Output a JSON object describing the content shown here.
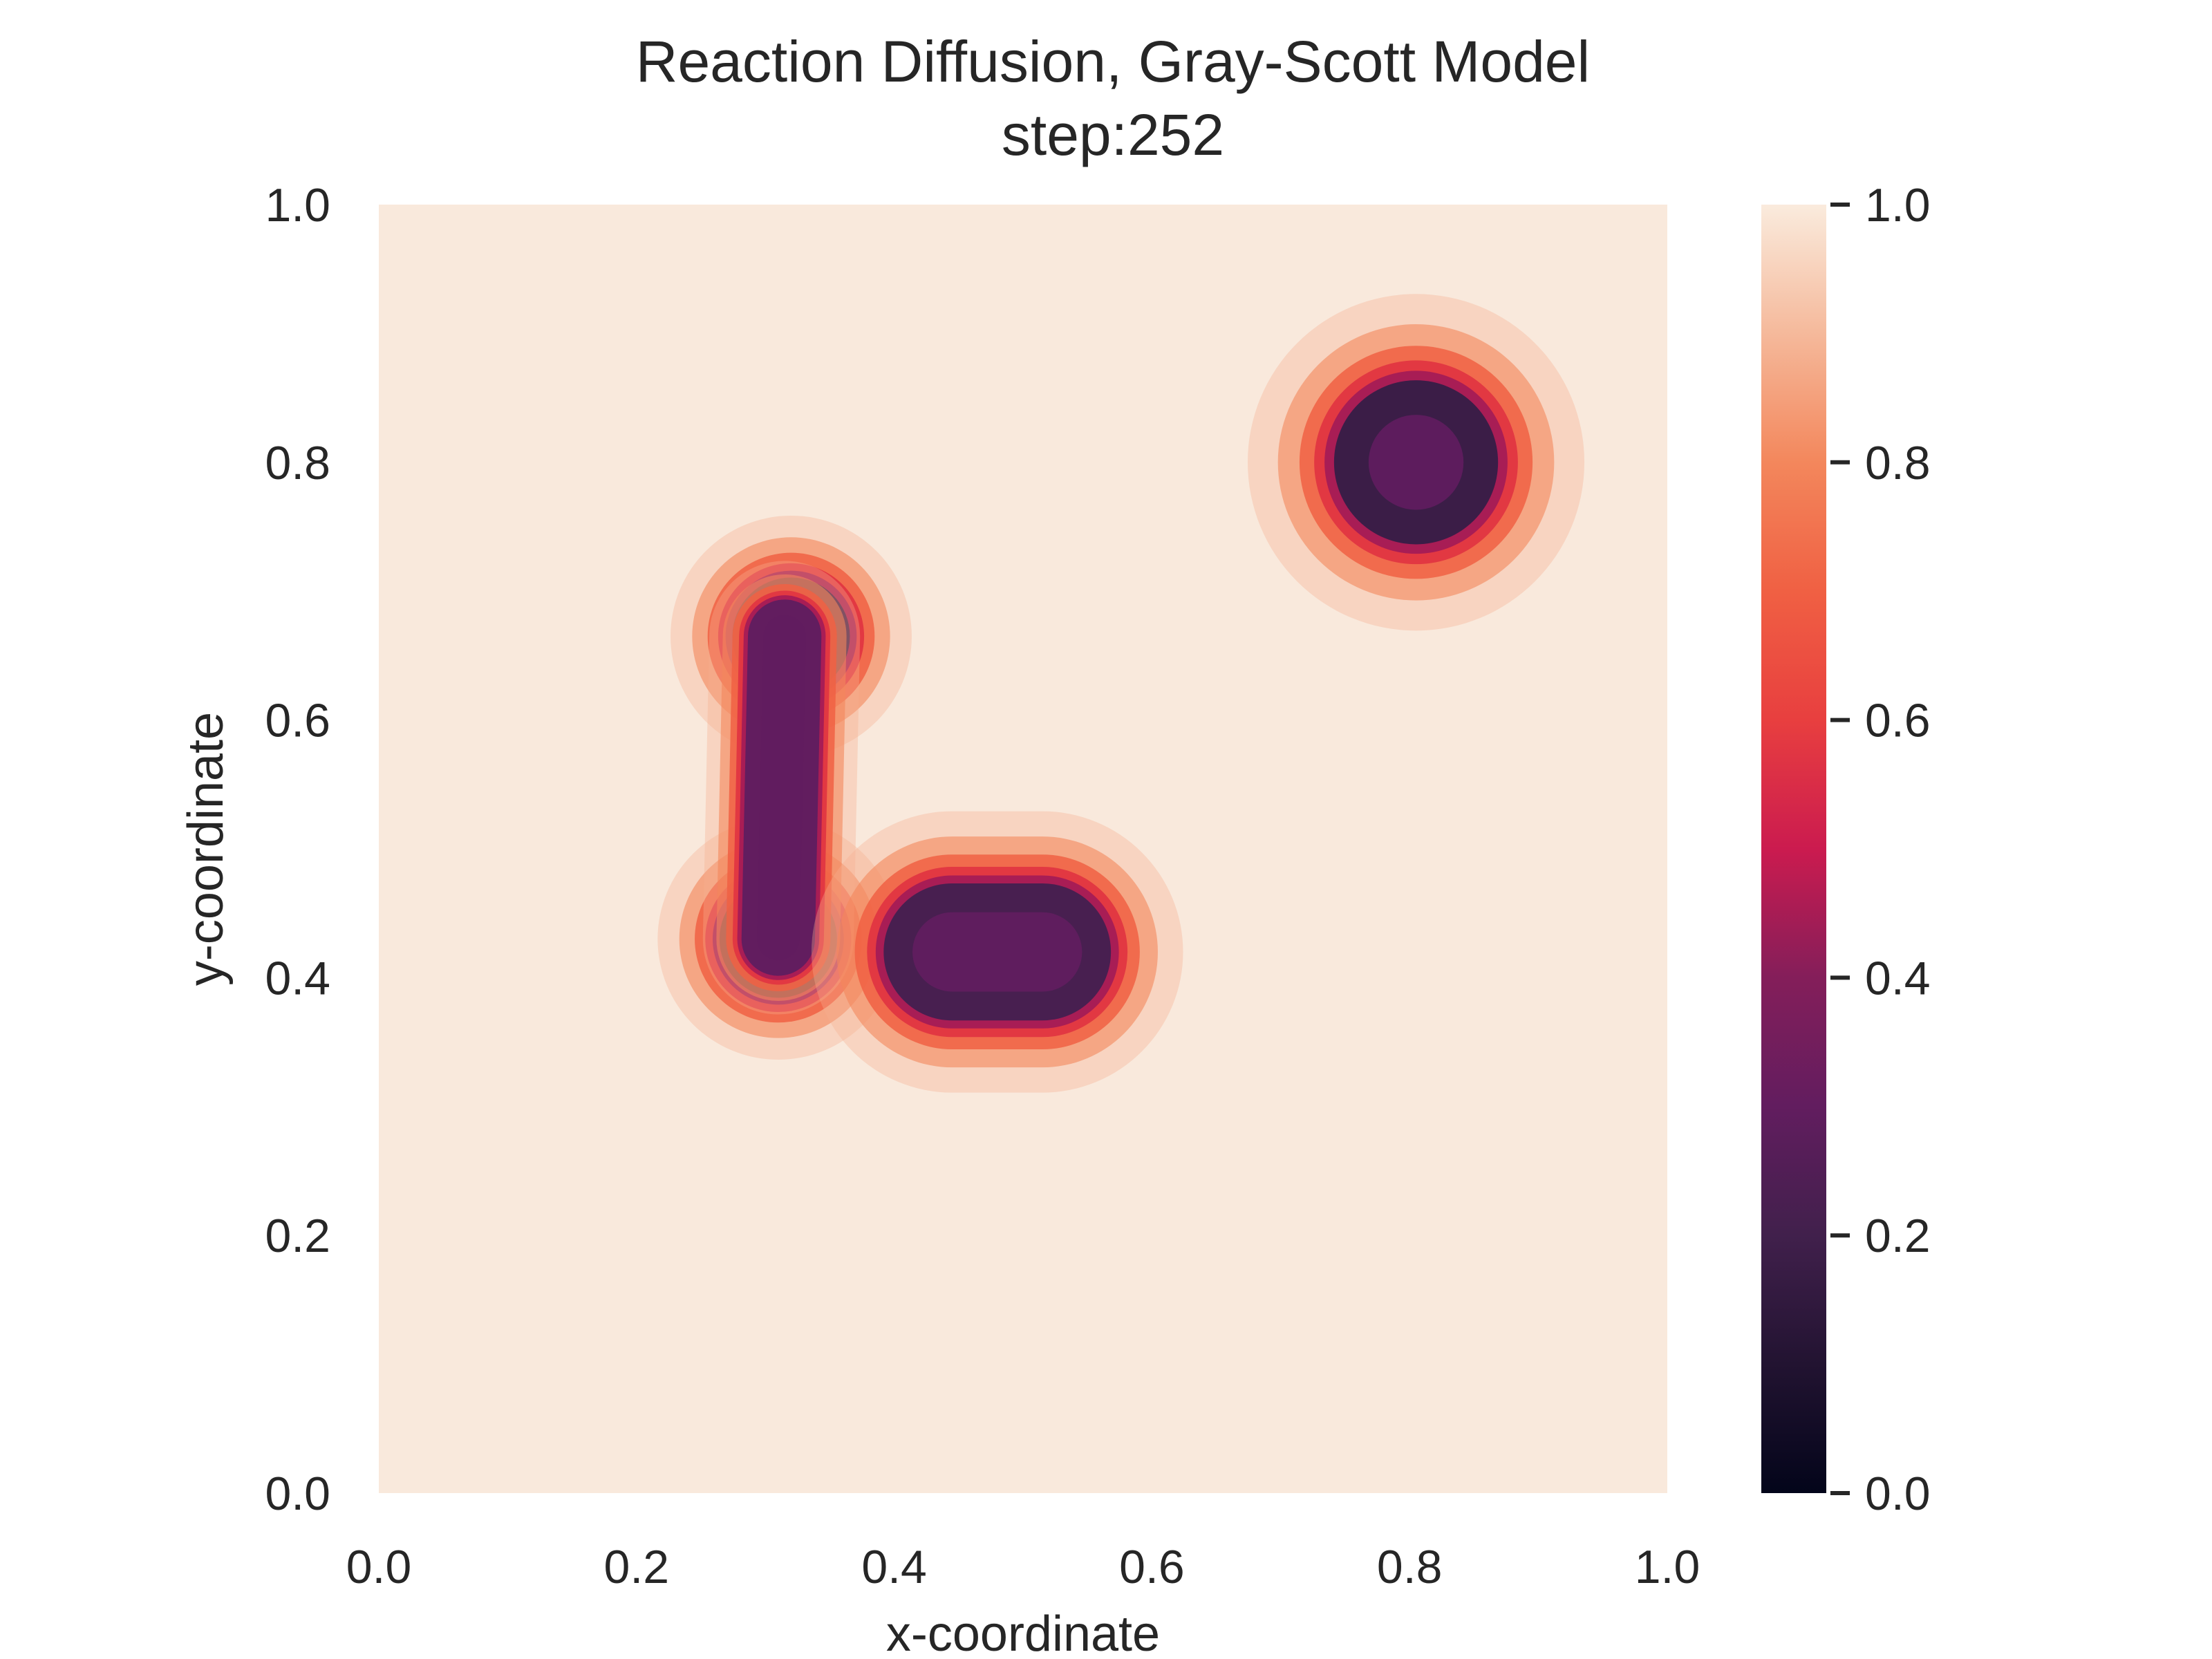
{
  "chart_data": {
    "type": "heatmap",
    "title": "Reaction Diffusion, Gray-Scott Model",
    "subtitle": "step:252",
    "xlabel": "x-coordinate",
    "ylabel": "y-coordinate",
    "xlim": [
      0.0,
      1.0
    ],
    "ylim": [
      0.0,
      1.0
    ],
    "x_ticks": [
      "0.0",
      "0.2",
      "0.4",
      "0.6",
      "0.8",
      "1.0"
    ],
    "y_ticks": [
      "0.0",
      "0.2",
      "0.4",
      "0.6",
      "0.8",
      "1.0"
    ],
    "grid": false,
    "colormap": "rocket",
    "colorbar": {
      "range": [
        0.0,
        1.0
      ],
      "ticks": [
        "0.0",
        "0.2",
        "0.4",
        "0.6",
        "0.8",
        "1.0"
      ],
      "placement": "right"
    },
    "background_value": 0.95,
    "spots": [
      {
        "shape": "circle",
        "center": [
          0.805,
          0.8
        ],
        "radius": 0.067,
        "core_value": 0.3,
        "rim_value": 0.18
      },
      {
        "shape": "circle",
        "center": [
          0.32,
          0.665
        ],
        "radius": 0.048,
        "core_value": 0.2,
        "rim_value": 0.2
      },
      {
        "shape": "circle",
        "center": [
          0.31,
          0.43
        ],
        "radius": 0.048,
        "core_value": 0.17,
        "rim_value": 0.17
      },
      {
        "shape": "bar",
        "from": [
          0.315,
          0.665
        ],
        "to": [
          0.31,
          0.43
        ],
        "half_width": 0.03,
        "core_value": 0.3,
        "rim_value": 0.3
      },
      {
        "shape": "bar",
        "from": [
          0.445,
          0.42
        ],
        "to": [
          0.515,
          0.42
        ],
        "half_width": 0.056,
        "core_value": 0.3,
        "rim_value": 0.22
      }
    ]
  }
}
